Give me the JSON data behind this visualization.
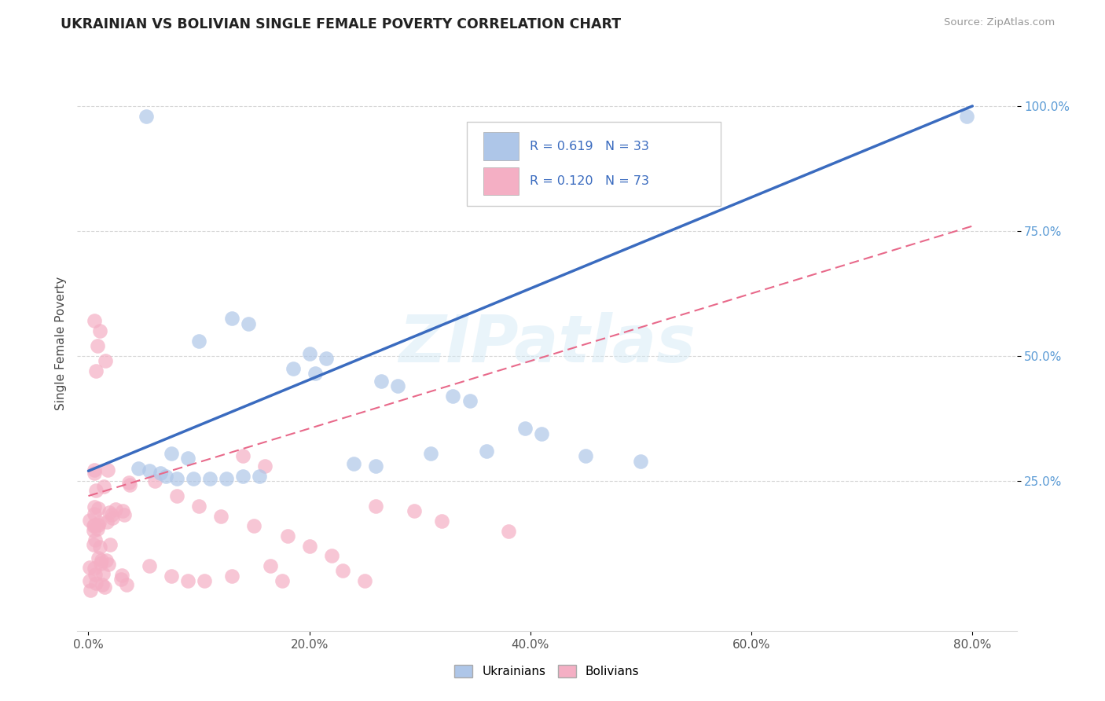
{
  "title": "UKRAINIAN VS BOLIVIAN SINGLE FEMALE POVERTY CORRELATION CHART",
  "source": "Source: ZipAtlas.com",
  "ylabel": "Single Female Poverty",
  "xlabel_ticks": [
    "0.0%",
    "20.0%",
    "40.0%",
    "60.0%",
    "80.0%"
  ],
  "xlabel_vals": [
    0.0,
    0.2,
    0.4,
    0.6,
    0.8
  ],
  "ylabel_ticks": [
    "25.0%",
    "50.0%",
    "75.0%",
    "100.0%"
  ],
  "ylabel_vals": [
    0.25,
    0.5,
    0.75,
    1.0
  ],
  "xlim": [
    -0.01,
    0.84
  ],
  "ylim": [
    -0.05,
    1.1
  ],
  "ukrainian_R": 0.619,
  "ukrainian_N": 33,
  "bolivian_R": 0.12,
  "bolivian_N": 73,
  "ukrainian_color": "#aec6e8",
  "bolivian_color": "#f4afc4",
  "ukrainian_line_color": "#3a6bbf",
  "bolivian_line_color": "#e8698a",
  "background_color": "#ffffff",
  "watermark": "ZIPatlas",
  "grid_color": "#cccccc",
  "tick_color": "#5b9bd5",
  "ukr_line_x0": 0.0,
  "ukr_line_y0": 0.27,
  "ukr_line_x1": 0.8,
  "ukr_line_y1": 1.0,
  "boli_line_x0": 0.0,
  "boli_line_y0": 0.22,
  "boli_line_x1": 0.8,
  "boli_line_y1": 0.76
}
